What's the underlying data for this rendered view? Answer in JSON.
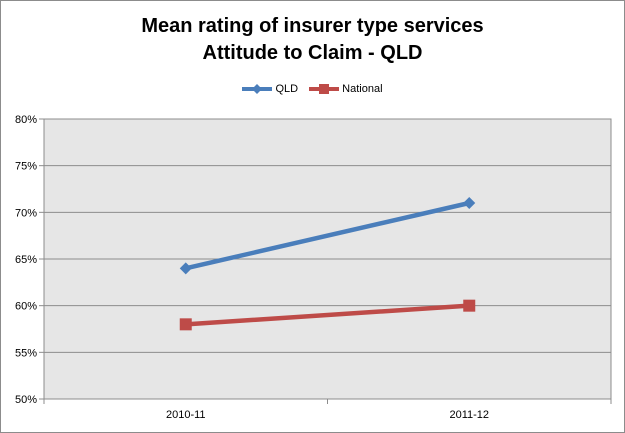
{
  "chart_data": {
    "type": "line",
    "title": [
      "Mean rating of insurer type services",
      "Attitude to Claim - QLD"
    ],
    "categories": [
      "2010-11",
      "2011-12"
    ],
    "series": [
      {
        "name": "QLD",
        "values": [
          64,
          71
        ],
        "color": "#4a7ebb",
        "marker": "diamond"
      },
      {
        "name": "National",
        "values": [
          58,
          60
        ],
        "color": "#be4b48",
        "marker": "square"
      }
    ],
    "ylim": [
      50,
      80
    ],
    "yticks": [
      "50%",
      "55%",
      "60%",
      "65%",
      "70%",
      "75%",
      "80%"
    ],
    "ytick_values": [
      50,
      55,
      60,
      65,
      70,
      75,
      80
    ],
    "grid": true,
    "legend_position": "top",
    "plot_background": "#e6e6e6"
  }
}
